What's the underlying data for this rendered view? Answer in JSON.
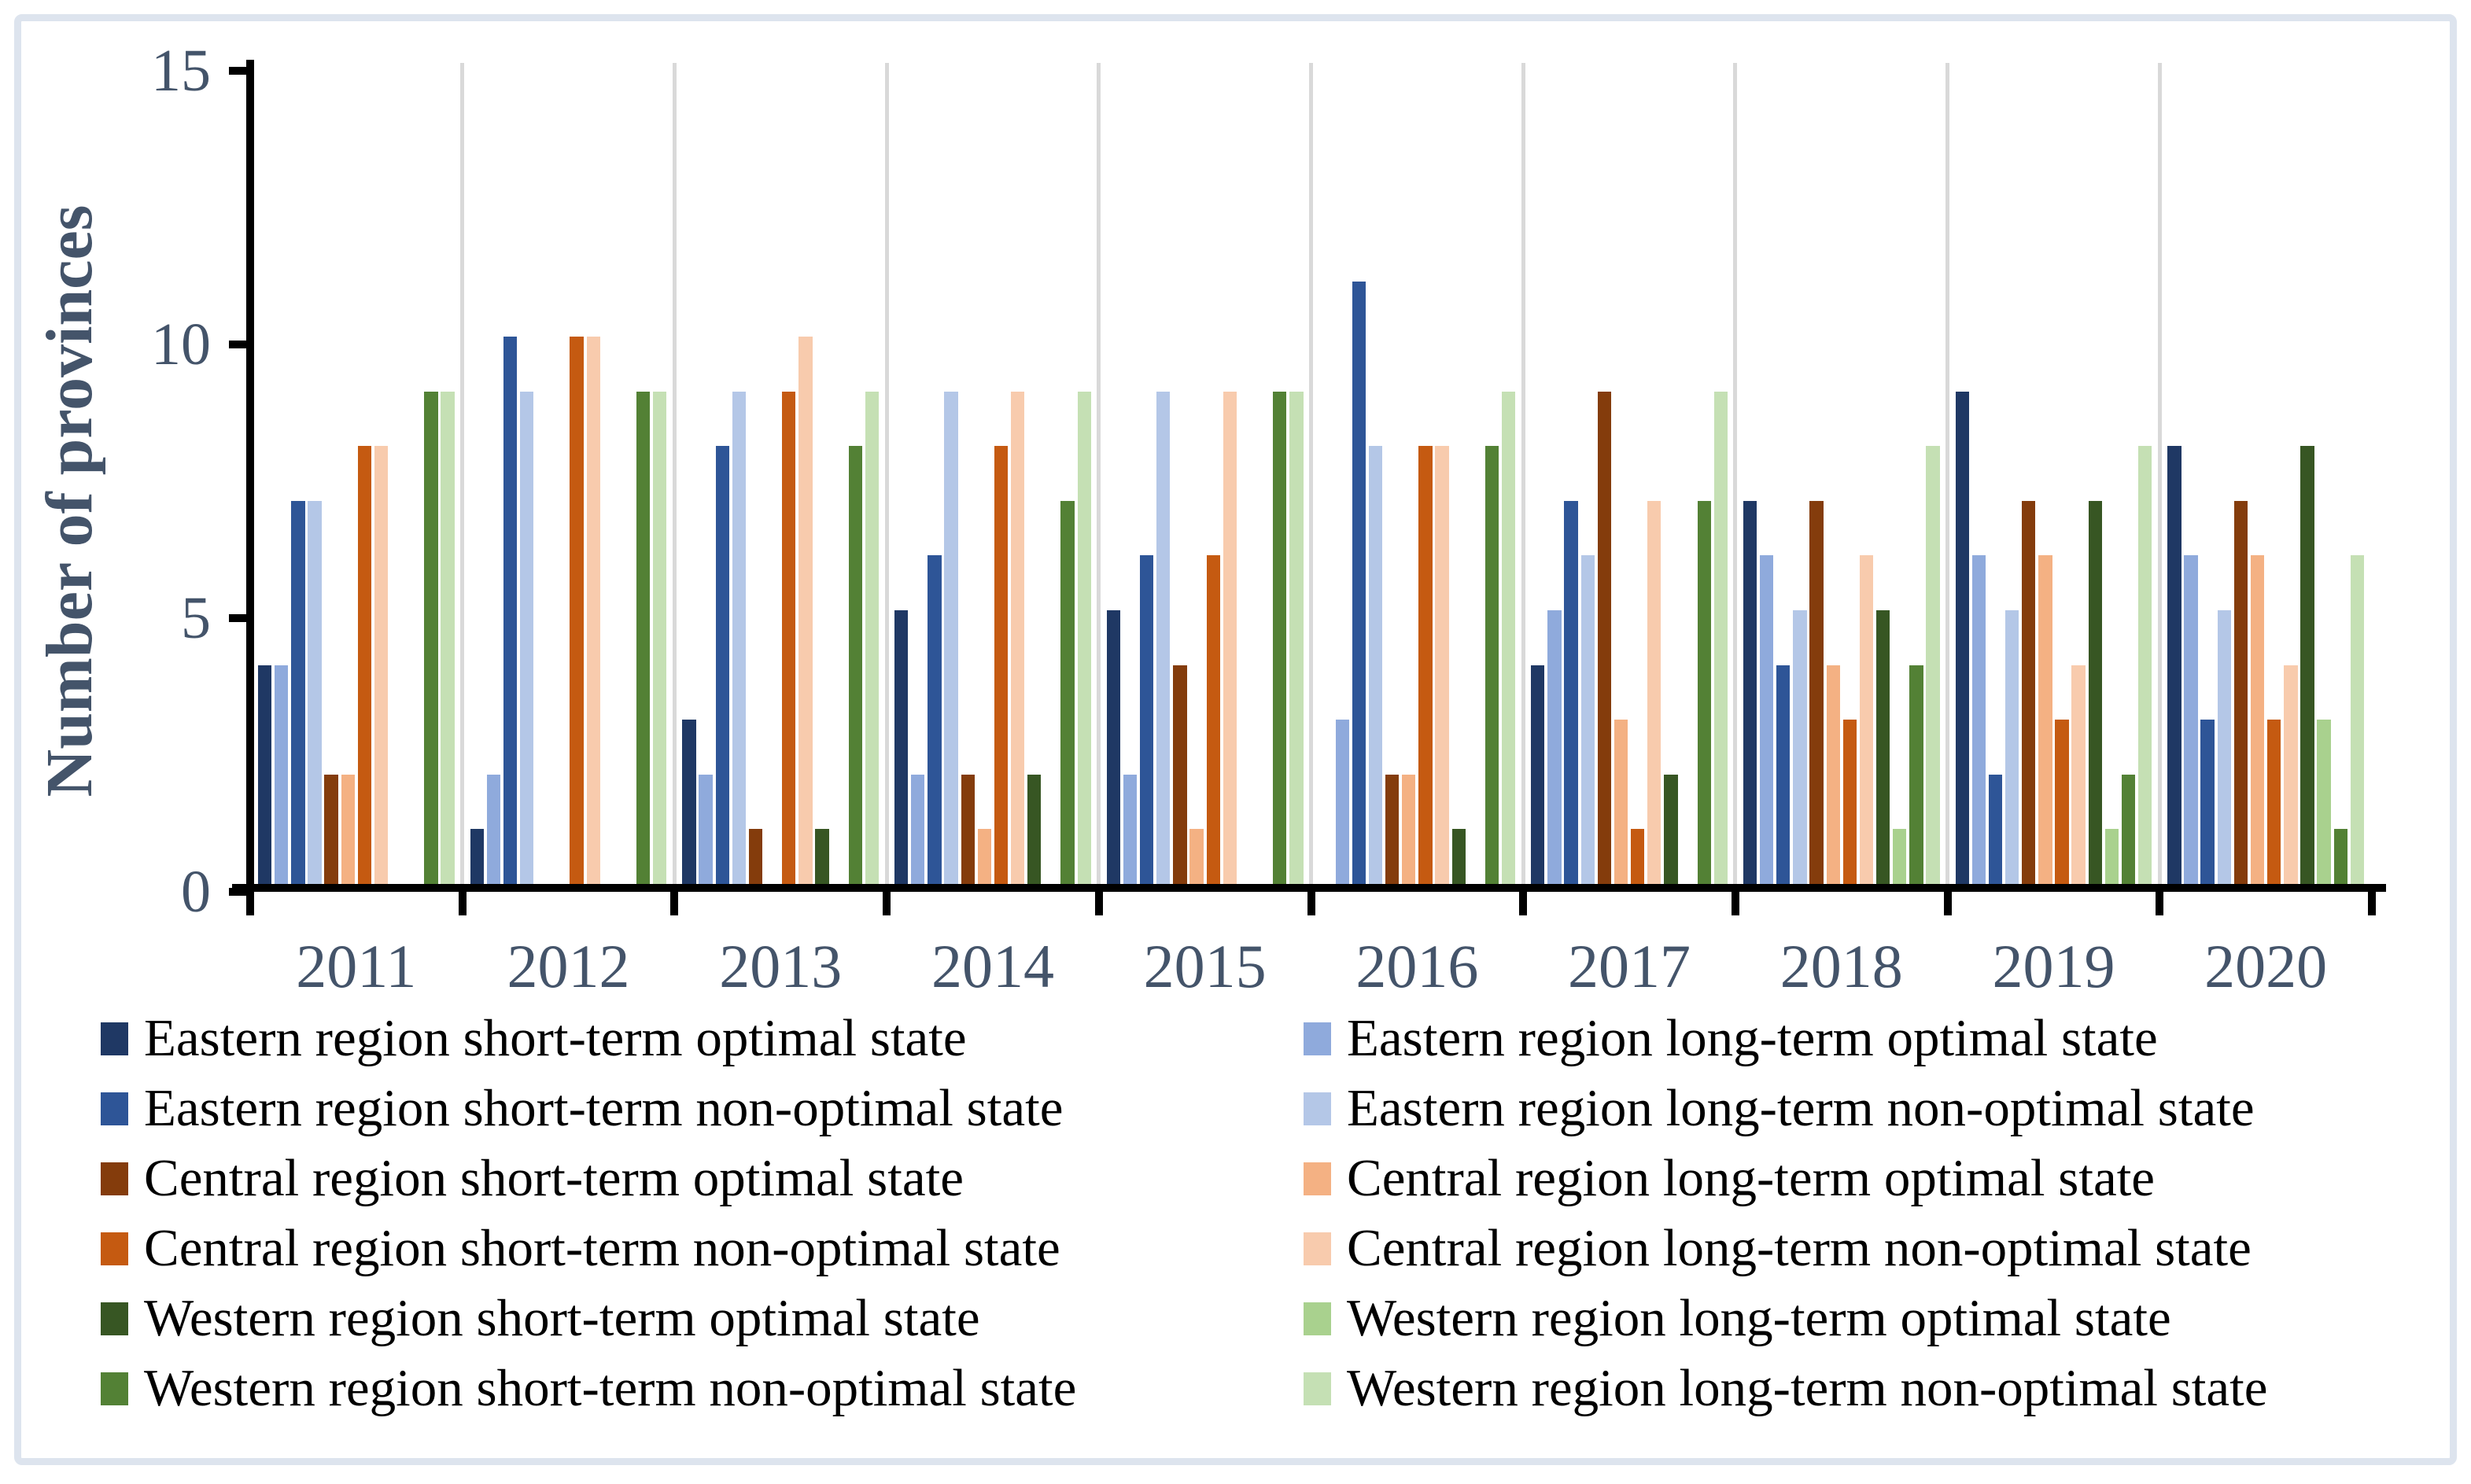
{
  "chart_data": {
    "type": "bar",
    "title": "",
    "ylabel": "Number of provinces",
    "xlabel": "",
    "ylim": [
      0,
      15
    ],
    "yticks": [
      0,
      5,
      10,
      15
    ],
    "grid": "vertical-category-separators-only",
    "legend_position": "bottom-two-columns",
    "categories": [
      "2011",
      "2012",
      "2013",
      "2014",
      "2015",
      "2016",
      "2017",
      "2018",
      "2019",
      "2020"
    ],
    "series": [
      {
        "name": "Eastern region short-term optimal state",
        "color": "#1f3864",
        "values": [
          4,
          1,
          3,
          5,
          5,
          0,
          4,
          7,
          9,
          8
        ]
      },
      {
        "name": "Eastern region long-term optimal state",
        "color": "#8faadc",
        "values": [
          4,
          2,
          2,
          2,
          2,
          3,
          5,
          6,
          6,
          6
        ]
      },
      {
        "name": "Eastern region short-term non-optimal state",
        "color": "#2e5597",
        "values": [
          7,
          10,
          8,
          6,
          6,
          11,
          7,
          4,
          2,
          3
        ]
      },
      {
        "name": "Eastern region long-term non-optimal state",
        "color": "#b4c7e7",
        "values": [
          7,
          9,
          9,
          9,
          9,
          8,
          6,
          5,
          5,
          5
        ]
      },
      {
        "name": "Central region short-term optimal state",
        "color": "#843c0c",
        "values": [
          2,
          0,
          1,
          2,
          4,
          2,
          9,
          7,
          7,
          7
        ]
      },
      {
        "name": "Central region long-term optimal state",
        "color": "#f4b183",
        "values": [
          2,
          0,
          0,
          1,
          1,
          2,
          3,
          4,
          6,
          6
        ]
      },
      {
        "name": "Central region short-term non-optimal state",
        "color": "#c55a11",
        "values": [
          8,
          10,
          9,
          8,
          6,
          8,
          1,
          3,
          3,
          3
        ]
      },
      {
        "name": "Central region long-term non-optimal state",
        "color": "#f8cbad",
        "values": [
          8,
          10,
          10,
          9,
          9,
          8,
          7,
          6,
          4,
          4
        ]
      },
      {
        "name": "Western region short-term optimal state",
        "color": "#375623",
        "values": [
          0,
          0,
          1,
          2,
          0,
          1,
          2,
          5,
          7,
          8
        ]
      },
      {
        "name": "Western region long-term optimal state",
        "color": "#a9d18e",
        "values": [
          0,
          0,
          0,
          0,
          0,
          0,
          0,
          1,
          1,
          3
        ]
      },
      {
        "name": "Western region short-term non-optimal state",
        "color": "#538135",
        "values": [
          9,
          9,
          8,
          7,
          9,
          8,
          7,
          4,
          2,
          1
        ]
      },
      {
        "name": "Western region long-term non-optimal state",
        "color": "#c5e0b4",
        "values": [
          9,
          9,
          9,
          9,
          9,
          9,
          9,
          8,
          8,
          6
        ]
      }
    ],
    "legend_columns": {
      "left": [
        0,
        2,
        4,
        6,
        8,
        10
      ],
      "right": [
        1,
        3,
        5,
        7,
        9,
        11
      ]
    }
  },
  "palette": {
    "axis_line": "#000000",
    "axis_text": "#44546a",
    "legend_text": "#000000",
    "category_separator": "#d9d9d9",
    "figure_border": "#dde4ee",
    "background": "#ffffff"
  }
}
